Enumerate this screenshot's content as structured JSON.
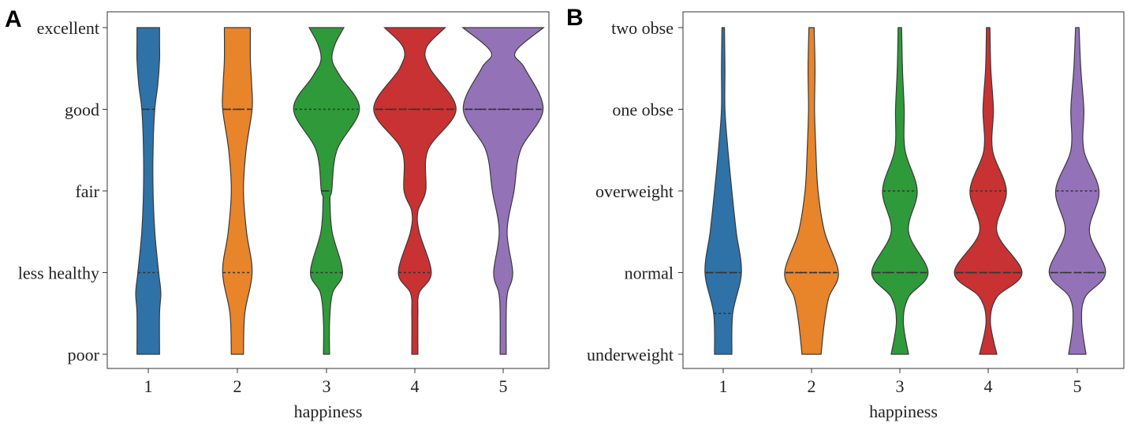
{
  "panels": [
    {
      "letter": "A"
    },
    {
      "letter": "B"
    }
  ],
  "chart_data": [
    {
      "type": "violin",
      "panel": "A",
      "xlabel": "happiness",
      "ylabel": "",
      "categories": [
        "1",
        "2",
        "3",
        "4",
        "5"
      ],
      "y_categories": [
        "poor",
        "less healthy",
        "fair",
        "good",
        "excellent"
      ],
      "inner": "quartile",
      "colors": [
        "#2e72a8",
        "#e8842a",
        "#2f9a3a",
        "#c83232",
        "#9472b8"
      ],
      "violins": [
        {
          "category": "1",
          "quartiles": [
            1,
            3,
            3
          ],
          "density": [
            [
              0,
              0.26
            ],
            [
              0.5,
              0.26
            ],
            [
              0.75,
              0.29
            ],
            [
              1,
              0.24
            ],
            [
              1.5,
              0.15
            ],
            [
              2,
              0.11
            ],
            [
              2.5,
              0.11
            ],
            [
              3,
              0.15
            ],
            [
              3.3,
              0.22
            ],
            [
              3.6,
              0.26
            ],
            [
              3.8,
              0.26
            ],
            [
              4,
              0.26
            ]
          ]
        },
        {
          "category": "2",
          "quartiles": [
            1,
            3,
            3
          ],
          "density": [
            [
              0,
              0.14
            ],
            [
              0.5,
              0.17
            ],
            [
              1,
              0.34
            ],
            [
              1.5,
              0.21
            ],
            [
              2,
              0.14
            ],
            [
              2.5,
              0.2
            ],
            [
              3,
              0.34
            ],
            [
              3.3,
              0.33
            ],
            [
              3.6,
              0.3
            ],
            [
              4,
              0.3
            ]
          ]
        },
        {
          "category": "3",
          "quartiles": [
            1,
            2,
            3
          ],
          "density": [
            [
              0,
              0.07
            ],
            [
              0.4,
              0.07
            ],
            [
              0.75,
              0.14
            ],
            [
              1,
              0.37
            ],
            [
              1.5,
              0.13
            ],
            [
              1.9,
              0.08
            ],
            [
              2,
              0.12
            ],
            [
              2.5,
              0.24
            ],
            [
              3,
              0.76
            ],
            [
              3.4,
              0.32
            ],
            [
              3.6,
              0.13
            ],
            [
              3.8,
              0.2
            ],
            [
              4,
              0.4
            ]
          ]
        },
        {
          "category": "4",
          "quartiles": [
            1,
            3,
            3
          ],
          "density": [
            [
              0,
              0.07
            ],
            [
              0.5,
              0.07
            ],
            [
              0.75,
              0.1
            ],
            [
              1,
              0.38
            ],
            [
              1.5,
              0.1
            ],
            [
              1.75,
              0.07
            ],
            [
              2,
              0.25
            ],
            [
              2.5,
              0.3
            ],
            [
              3,
              0.95
            ],
            [
              3.5,
              0.35
            ],
            [
              3.75,
              0.26
            ],
            [
              4,
              0.7
            ]
          ]
        },
        {
          "category": "5",
          "quartiles": [
            3,
            3,
            3
          ],
          "density": [
            [
              0,
              0.07
            ],
            [
              0.5,
              0.07
            ],
            [
              0.75,
              0.1
            ],
            [
              1,
              0.22
            ],
            [
              1.5,
              0.09
            ],
            [
              2,
              0.25
            ],
            [
              2.5,
              0.4
            ],
            [
              3,
              0.92
            ],
            [
              3.5,
              0.5
            ],
            [
              3.7,
              0.28
            ],
            [
              4,
              0.93
            ]
          ]
        }
      ]
    },
    {
      "type": "violin",
      "panel": "B",
      "xlabel": "happiness",
      "ylabel": "",
      "categories": [
        "1",
        "2",
        "3",
        "4",
        "5"
      ],
      "y_categories": [
        "underweight",
        "normal",
        "overweight",
        "one obse",
        "two obse"
      ],
      "inner": "quartile",
      "colors": [
        "#2e72a8",
        "#e8842a",
        "#2f9a3a",
        "#c83232",
        "#9472b8"
      ],
      "violins": [
        {
          "category": "1",
          "quartiles": [
            0.5,
            1,
            1
          ],
          "density": [
            [
              0,
              0.2
            ],
            [
              0.5,
              0.22
            ],
            [
              1,
              0.42
            ],
            [
              1.5,
              0.3
            ],
            [
              2,
              0.2
            ],
            [
              2.5,
              0.11
            ],
            [
              3,
              0.04
            ],
            [
              3.5,
              0.04
            ],
            [
              4,
              0.03
            ]
          ]
        },
        {
          "category": "2",
          "quartiles": [
            1,
            1,
            1
          ],
          "density": [
            [
              0,
              0.22
            ],
            [
              0.4,
              0.3
            ],
            [
              0.7,
              0.4
            ],
            [
              1,
              0.62
            ],
            [
              1.5,
              0.3
            ],
            [
              2,
              0.15
            ],
            [
              2.5,
              0.1
            ],
            [
              3,
              0.07
            ],
            [
              3.5,
              0.08
            ],
            [
              4,
              0.06
            ]
          ]
        },
        {
          "category": "3",
          "quartiles": [
            1,
            1,
            2
          ],
          "density": [
            [
              0,
              0.2
            ],
            [
              0.4,
              0.08
            ],
            [
              0.7,
              0.2
            ],
            [
              1,
              0.65
            ],
            [
              1.5,
              0.2
            ],
            [
              2,
              0.4
            ],
            [
              2.5,
              0.12
            ],
            [
              3,
              0.1
            ],
            [
              3.5,
              0.06
            ],
            [
              4,
              0.04
            ]
          ]
        },
        {
          "category": "4",
          "quartiles": [
            1,
            1,
            2
          ],
          "density": [
            [
              0,
              0.2
            ],
            [
              0.4,
              0.05
            ],
            [
              0.7,
              0.2
            ],
            [
              1,
              0.78
            ],
            [
              1.5,
              0.2
            ],
            [
              2,
              0.42
            ],
            [
              2.5,
              0.1
            ],
            [
              3,
              0.12
            ],
            [
              3.5,
              0.06
            ],
            [
              4,
              0.04
            ]
          ]
        },
        {
          "category": "5",
          "quartiles": [
            1,
            1,
            2
          ],
          "density": [
            [
              0,
              0.2
            ],
            [
              0.4,
              0.1
            ],
            [
              0.7,
              0.18
            ],
            [
              1,
              0.65
            ],
            [
              1.5,
              0.28
            ],
            [
              2,
              0.5
            ],
            [
              2.5,
              0.15
            ],
            [
              3,
              0.15
            ],
            [
              3.5,
              0.08
            ],
            [
              4,
              0.04
            ]
          ]
        }
      ]
    }
  ]
}
